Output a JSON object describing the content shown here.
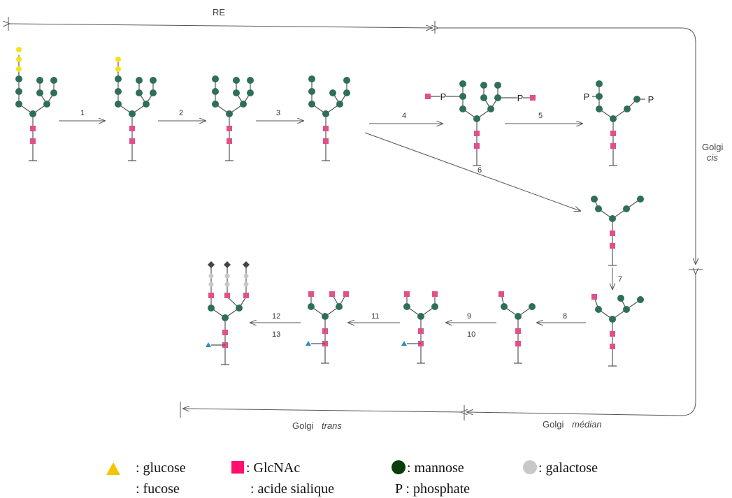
{
  "regions": {
    "re": "RE",
    "golgi_cis_1": "Golgi",
    "golgi_cis_2": "cis",
    "golgi_trans_1": "Golgi",
    "golgi_trans_2": "trans",
    "golgi_median_1": "Golgi",
    "golgi_median_2": "médian"
  },
  "steps": [
    "1",
    "2",
    "3",
    "4",
    "5",
    "6",
    "7",
    "8",
    "9",
    "10",
    "11",
    "12",
    "13"
  ],
  "phosphate_symbol": "P",
  "legend": {
    "glucose": ": glucose",
    "glcnac": ": GlcNAc",
    "mannose": ": mannose",
    "galactose": ": galactose",
    "fucose": ": fucose",
    "sialic": ": acide sialique",
    "phosphate": "P : phosphate"
  },
  "colors": {
    "mannose": "#2e6e5a",
    "glcnac": "#e0508a",
    "glucose_chain": "#f2e41c",
    "glucose_legend": "#f5c400",
    "glcnac_legend": "#ff0f6e",
    "mannose_legend": "#0a3d0a",
    "galactose": "#c8c8c8",
    "fucose": "#2a8fc0",
    "sialic": "#444444",
    "line": "#555555"
  }
}
